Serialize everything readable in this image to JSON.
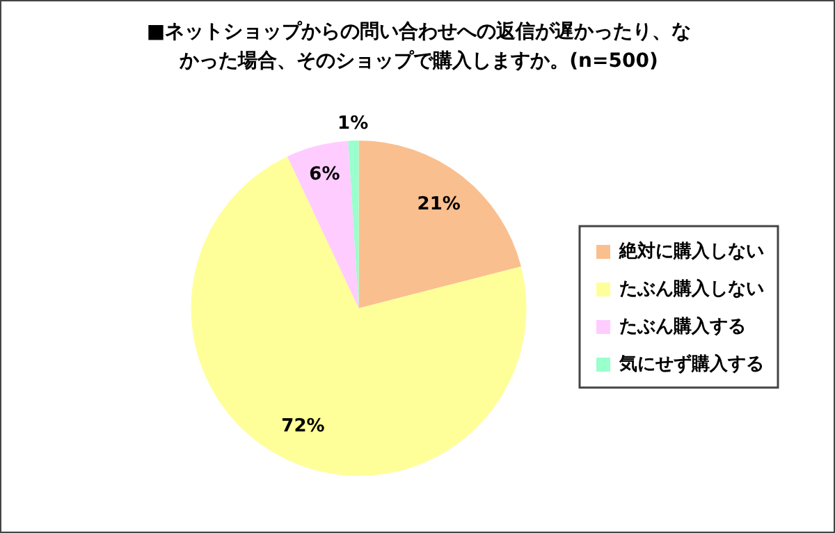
{
  "chart_data": {
    "type": "pie",
    "title": "■ネットショップからの問い合わせへの返信が遅かったり、なかった場合、そのショップで購入しますか。(n=500)",
    "categories": [
      "絶対に購入しない",
      "たぶん購入しない",
      "たぶん購入する",
      "気にせず購入する"
    ],
    "values": [
      21,
      72,
      6,
      1
    ],
    "colors": [
      "#fabf8f",
      "#ffff99",
      "#ffccff",
      "#99ffcc"
    ],
    "legend": "right",
    "value_labels": [
      "21%",
      "72%",
      "6%",
      "1%"
    ]
  }
}
